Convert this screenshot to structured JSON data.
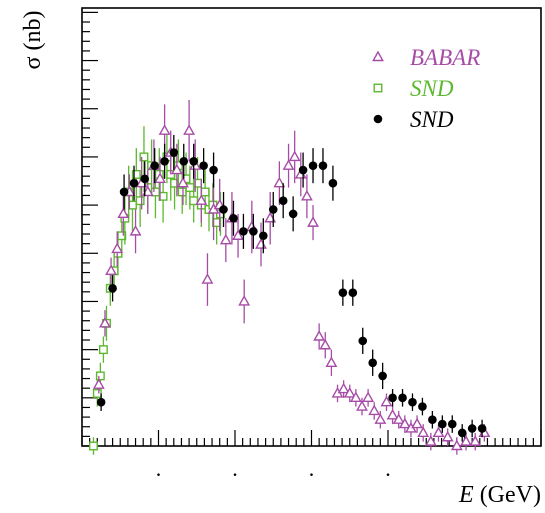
{
  "chart_data": {
    "type": "scatter",
    "title": "",
    "xlabel": "E (GeV)",
    "xlabel_italic": "E",
    "xlabel_unit": " (GeV)",
    "ylabel": "σ (nb)",
    "xlim": [
      0.6,
      1.2
    ],
    "ylim": [
      0,
      1
    ],
    "x_tick_labels": [
      {
        "x": 0.7,
        "label": "."
      },
      {
        "x": 0.8,
        "label": "."
      },
      {
        "x": 0.9,
        "label": "."
      },
      {
        "x": 1.0,
        "label": "."
      }
    ],
    "grid": false,
    "legend_position": "top-right",
    "legend": [
      {
        "name": "BABAR",
        "marker": "triangle-open",
        "color": "#a64ca6"
      },
      {
        "name": "SND",
        "marker": "square-open",
        "color": "#5cb82e"
      },
      {
        "name": "SND",
        "marker": "circle-filled",
        "color": "#000000"
      }
    ],
    "series": [
      {
        "name": "BABAR",
        "marker": "triangle-open",
        "color": "#a64ca6",
        "points": [
          [
            0.622,
            0.14,
            0.02
          ],
          [
            0.63,
            0.28,
            0.03
          ],
          [
            0.638,
            0.4,
            0.03
          ],
          [
            0.646,
            0.45,
            0.04
          ],
          [
            0.654,
            0.53,
            0.05
          ],
          [
            0.662,
            0.58,
            0.04
          ],
          [
            0.67,
            0.49,
            0.05
          ],
          [
            0.678,
            0.6,
            0.06
          ],
          [
            0.686,
            0.58,
            0.05
          ],
          [
            0.694,
            0.64,
            0.06
          ],
          [
            0.702,
            0.61,
            0.05
          ],
          [
            0.708,
            0.72,
            0.06
          ],
          [
            0.716,
            0.67,
            0.05
          ],
          [
            0.724,
            0.63,
            0.06
          ],
          [
            0.732,
            0.6,
            0.05
          ],
          [
            0.74,
            0.72,
            0.07
          ],
          [
            0.748,
            0.64,
            0.06
          ],
          [
            0.756,
            0.56,
            0.05
          ],
          [
            0.764,
            0.38,
            0.06
          ],
          [
            0.772,
            0.54,
            0.07
          ],
          [
            0.78,
            0.55,
            0.06
          ],
          [
            0.788,
            0.47,
            0.05
          ],
          [
            0.796,
            0.52,
            0.06
          ],
          [
            0.804,
            0.48,
            0.05
          ],
          [
            0.812,
            0.33,
            0.05
          ],
          [
            0.822,
            0.5,
            0.06
          ],
          [
            0.834,
            0.46,
            0.05
          ],
          [
            0.846,
            0.52,
            0.06
          ],
          [
            0.858,
            0.6,
            0.05
          ],
          [
            0.87,
            0.64,
            0.05
          ],
          [
            0.878,
            0.66,
            0.06
          ],
          [
            0.886,
            0.62,
            0.05
          ],
          [
            0.894,
            0.57,
            0.05
          ],
          [
            0.902,
            0.51,
            0.04
          ],
          [
            0.91,
            0.25,
            0.03
          ],
          [
            0.918,
            0.23,
            0.03
          ],
          [
            0.926,
            0.19,
            0.03
          ],
          [
            0.934,
            0.12,
            0.02
          ],
          [
            0.942,
            0.13,
            0.02
          ],
          [
            0.95,
            0.12,
            0.02
          ],
          [
            0.958,
            0.11,
            0.02
          ],
          [
            0.966,
            0.09,
            0.02
          ],
          [
            0.974,
            0.11,
            0.02
          ],
          [
            0.982,
            0.08,
            0.02
          ],
          [
            0.99,
            0.06,
            0.02
          ],
          [
            0.998,
            0.1,
            0.02
          ],
          [
            1.006,
            0.07,
            0.02
          ],
          [
            1.014,
            0.06,
            0.02
          ],
          [
            1.022,
            0.05,
            0.02
          ],
          [
            1.03,
            0.04,
            0.02
          ],
          [
            1.038,
            0.05,
            0.02
          ],
          [
            1.046,
            0.03,
            0.02
          ],
          [
            1.056,
            0.01,
            0.02
          ],
          [
            1.066,
            0.03,
            0.02
          ],
          [
            1.078,
            0.02,
            0.02
          ],
          [
            1.09,
            0.0,
            0.02
          ],
          [
            1.102,
            0.01,
            0.02
          ],
          [
            1.114,
            0.01,
            0.02
          ],
          [
            1.126,
            0.03,
            0.02
          ]
        ]
      },
      {
        "name": "SND",
        "marker": "square-open",
        "color": "#5cb82e",
        "points": [
          [
            0.615,
            0.0,
            0.02
          ],
          [
            0.62,
            0.12,
            0.03
          ],
          [
            0.624,
            0.16,
            0.03
          ],
          [
            0.628,
            0.22,
            0.03
          ],
          [
            0.632,
            0.28,
            0.04
          ],
          [
            0.637,
            0.36,
            0.04
          ],
          [
            0.642,
            0.4,
            0.05
          ],
          [
            0.647,
            0.44,
            0.05
          ],
          [
            0.652,
            0.48,
            0.05
          ],
          [
            0.656,
            0.52,
            0.06
          ],
          [
            0.661,
            0.58,
            0.06
          ],
          [
            0.666,
            0.55,
            0.06
          ],
          [
            0.671,
            0.62,
            0.06
          ],
          [
            0.676,
            0.56,
            0.06
          ],
          [
            0.681,
            0.66,
            0.07
          ],
          [
            0.686,
            0.59,
            0.06
          ],
          [
            0.691,
            0.64,
            0.06
          ],
          [
            0.696,
            0.58,
            0.06
          ],
          [
            0.701,
            0.62,
            0.06
          ],
          [
            0.706,
            0.57,
            0.06
          ],
          [
            0.711,
            0.66,
            0.06
          ],
          [
            0.716,
            0.62,
            0.06
          ],
          [
            0.721,
            0.6,
            0.06
          ],
          [
            0.726,
            0.64,
            0.06
          ],
          [
            0.731,
            0.58,
            0.05
          ],
          [
            0.736,
            0.61,
            0.06
          ],
          [
            0.741,
            0.59,
            0.05
          ],
          [
            0.746,
            0.56,
            0.05
          ],
          [
            0.751,
            0.6,
            0.06
          ],
          [
            0.756,
            0.55,
            0.05
          ],
          [
            0.761,
            0.58,
            0.05
          ],
          [
            0.766,
            0.54,
            0.05
          ],
          [
            0.771,
            0.55,
            0.05
          ],
          [
            0.776,
            0.51,
            0.05
          ],
          [
            0.781,
            0.53,
            0.05
          ]
        ]
      },
      {
        "name": "SND",
        "marker": "circle-filled",
        "color": "#000000",
        "points": [
          [
            0.625,
            0.1,
            0.02
          ],
          [
            0.64,
            0.36,
            0.03
          ],
          [
            0.655,
            0.58,
            0.04
          ],
          [
            0.668,
            0.6,
            0.04
          ],
          [
            0.682,
            0.61,
            0.04
          ],
          [
            0.695,
            0.64,
            0.04
          ],
          [
            0.708,
            0.65,
            0.04
          ],
          [
            0.72,
            0.67,
            0.04
          ],
          [
            0.733,
            0.65,
            0.04
          ],
          [
            0.746,
            0.65,
            0.04
          ],
          [
            0.759,
            0.64,
            0.04
          ],
          [
            0.772,
            0.63,
            0.04
          ],
          [
            0.785,
            0.54,
            0.04
          ],
          [
            0.798,
            0.52,
            0.04
          ],
          [
            0.811,
            0.49,
            0.04
          ],
          [
            0.824,
            0.49,
            0.04
          ],
          [
            0.837,
            0.48,
            0.04
          ],
          [
            0.85,
            0.54,
            0.04
          ],
          [
            0.863,
            0.56,
            0.04
          ],
          [
            0.876,
            0.53,
            0.04
          ],
          [
            0.889,
            0.63,
            0.04
          ],
          [
            0.902,
            0.64,
            0.04
          ],
          [
            0.915,
            0.64,
            0.04
          ],
          [
            0.928,
            0.6,
            0.04
          ],
          [
            0.941,
            0.35,
            0.03
          ],
          [
            0.954,
            0.35,
            0.03
          ],
          [
            0.967,
            0.24,
            0.03
          ],
          [
            0.98,
            0.19,
            0.03
          ],
          [
            0.993,
            0.16,
            0.03
          ],
          [
            1.006,
            0.11,
            0.02
          ],
          [
            1.019,
            0.11,
            0.02
          ],
          [
            1.032,
            0.1,
            0.02
          ],
          [
            1.045,
            0.09,
            0.02
          ],
          [
            1.058,
            0.06,
            0.02
          ],
          [
            1.071,
            0.05,
            0.02
          ],
          [
            1.084,
            0.05,
            0.02
          ],
          [
            1.097,
            0.03,
            0.02
          ],
          [
            1.11,
            0.04,
            0.02
          ],
          [
            1.123,
            0.04,
            0.02
          ]
        ]
      }
    ]
  }
}
